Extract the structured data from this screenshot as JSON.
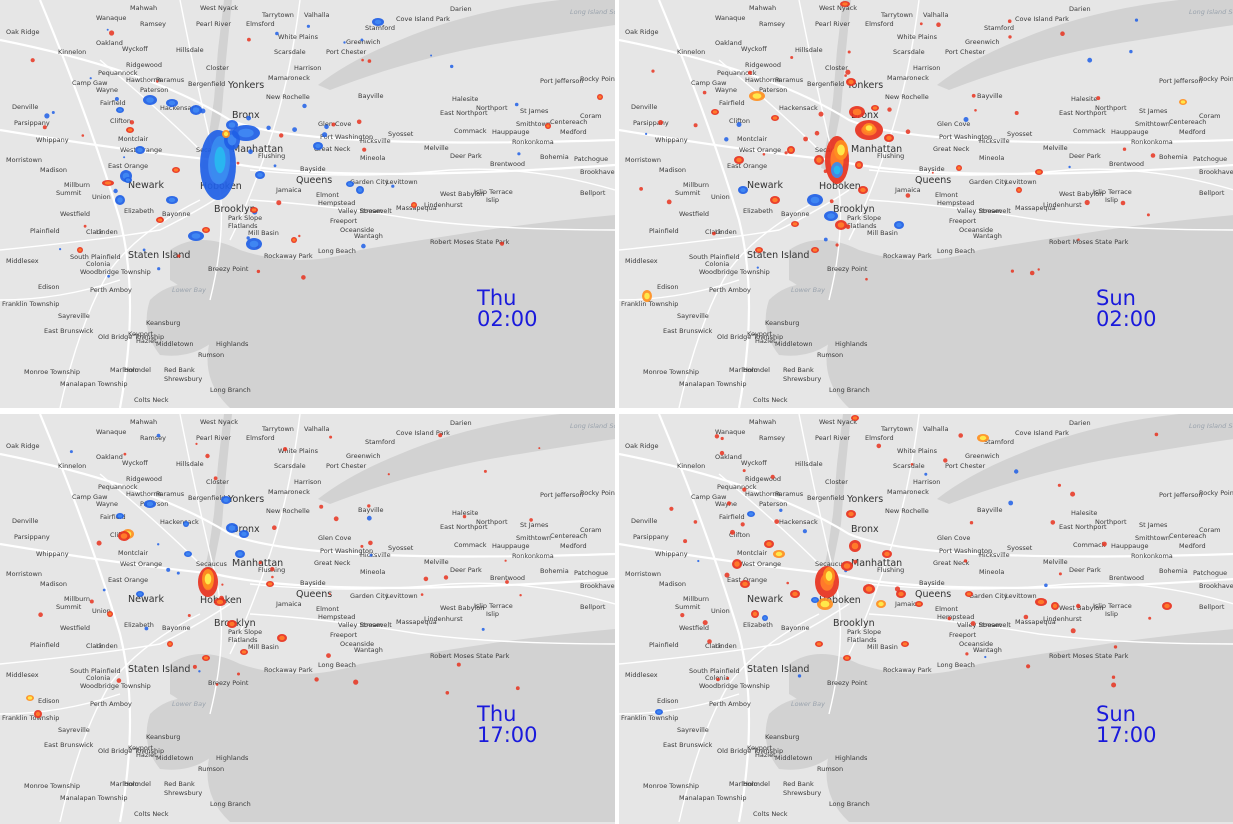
{
  "panels": [
    {
      "day": "Thu",
      "time": "02:00"
    },
    {
      "day": "Sun",
      "time": "02:00"
    },
    {
      "day": "Thu",
      "time": "17:00"
    },
    {
      "day": "Sun",
      "time": "17:00"
    }
  ],
  "map_labels": [
    "Mahwah",
    "West Nyack",
    "Tarrytown",
    "Valhalla",
    "Darien",
    "Cove Island Park",
    "Long Island Sound",
    "Oak Ridge",
    "Ramsey",
    "Pearl River",
    "Elmsford",
    "White Plains",
    "Stamford",
    "Wanaque",
    "Oakland",
    "Wyckoff",
    "Hillsdale",
    "Scarsdale",
    "Port Chester",
    "Greenwich",
    "Kinnelon",
    "Ridgewood",
    "Closter",
    "Harrison",
    "Pequannock",
    "Hawthorne",
    "Paramus",
    "Bergenfield",
    "Yonkers",
    "Mamaroneck",
    "Camp Gaw",
    "Wayne",
    "Paterson",
    "New Rochelle",
    "Denville",
    "Fairfield",
    "Hackensack",
    "Bayville",
    "Halesite",
    "Port Jefferson",
    "Rocky Point",
    "Parsippany",
    "Clifton",
    "Northport",
    "East Northport",
    "St James",
    "Coram",
    "Smithtown",
    "Centereach",
    "Whippany",
    "Montclair",
    "Bronx",
    "Glen Cove",
    "Port Washington",
    "Syosset",
    "Commack",
    "Hauppauge",
    "Medford",
    "Morristown",
    "West Orange",
    "Secaucus",
    "Ronkonkoma",
    "Madison",
    "East Orange",
    "Manhattan",
    "Great Neck",
    "Flushing",
    "Bayside",
    "Mineola",
    "Hicksville",
    "Melville",
    "Deer Park",
    "Brentwood",
    "Bohemia",
    "Patchogue",
    "Brookhaven",
    "Millburn",
    "Newark",
    "Hoboken",
    "Queens",
    "Jamaica",
    "Garden City",
    "Levittown",
    "West Babylon",
    "Islip Terrace",
    "Islip",
    "Bellport",
    "Summit",
    "Union",
    "Elizabeth",
    "Bayonne",
    "Park Slope",
    "Brooklyn",
    "Elmont",
    "Hempstead",
    "Roosevelt",
    "Massapequa",
    "Lindenhurst",
    "Westfield",
    "Linden",
    "Valley Stream",
    "Freeport",
    "Plainfield",
    "Clark",
    "Flatlands",
    "Mill Basin",
    "Oceanside",
    "Wantagh",
    "Robert Moses State Park",
    "South Plainfield",
    "Colonia",
    "Woodbridge Township",
    "Staten Island",
    "Rockaway Park",
    "Long Beach",
    "Middlesex",
    "Breezy Point",
    "Edison",
    "Perth Amboy",
    "Lower Bay",
    "Franklin Township",
    "Sayreville",
    "East Brunswick",
    "Keyport",
    "Hazlet",
    "Keansburg",
    "Old Bridge Township",
    "Middletown",
    "Highlands",
    "Rumson",
    "Marlboro",
    "Holmdel",
    "Red Bank",
    "Shrewsbury",
    "Monroe Township",
    "Manalapan Township",
    "Long Branch",
    "Colts Neck"
  ],
  "colors": {
    "land": "#e6e6e6",
    "water": "#d2d2d2",
    "road": "#ffffff",
    "time_label": "#1a1adc",
    "positive_anomaly_low": "#e8321e",
    "positive_anomaly_high": "#ffe84a",
    "negative_anomaly_low": "#1f5fe6",
    "negative_anomaly_high": "#29b6f0"
  }
}
